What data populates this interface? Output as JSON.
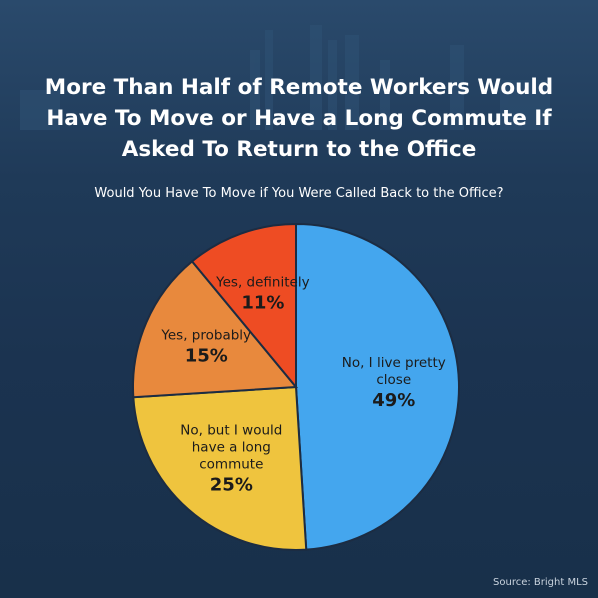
{
  "chart_data": {
    "type": "pie",
    "title": "More Than Half of Remote Workers Would Have To Move or Have a Long Commute If Asked To Return to the Office",
    "subtitle": "Would You Have To Move if You Were Called Back to the Office?",
    "categories": [
      "No, I live pretty close",
      "No, but I would have a long commute",
      "Yes, probably",
      "Yes, definitely"
    ],
    "values": [
      49,
      25,
      15,
      11
    ],
    "value_labels": [
      "49%",
      "25%",
      "15%",
      "11%"
    ],
    "colors": [
      "#44a6ee",
      "#efc43e",
      "#e8893d",
      "#ee4c23"
    ],
    "source": "Source: Bright MLS"
  }
}
